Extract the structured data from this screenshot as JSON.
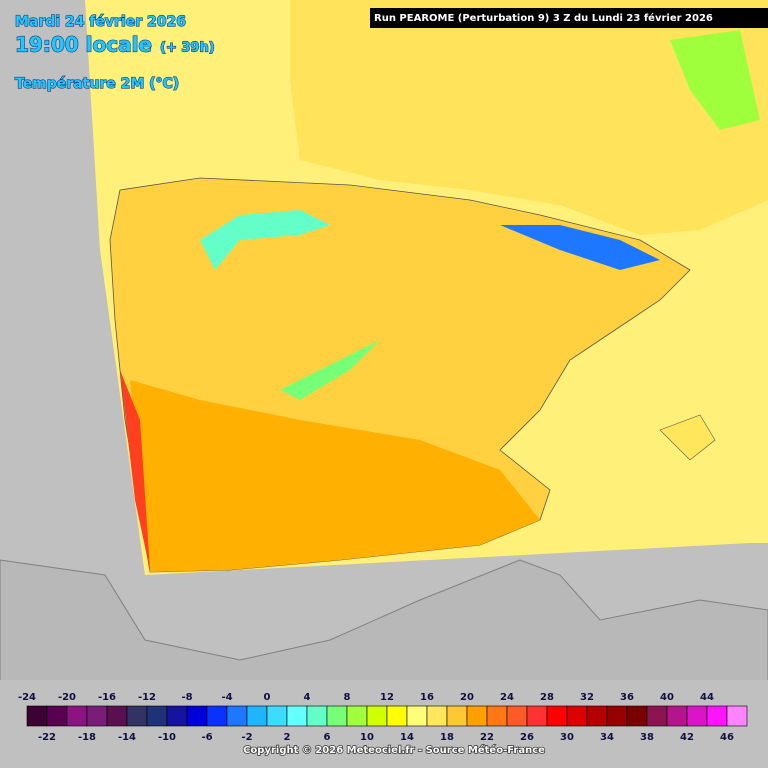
{
  "header": {
    "date": "Mardi 24 février 2026",
    "time": "19:00 locale",
    "lead": "(+ 39h)",
    "parameter": "Température 2M (°C)",
    "run": "Run PEAROME (Perturbation 9) 3 Z du Lundi 23 février 2026"
  },
  "legend": {
    "values": [
      -24,
      -22,
      -20,
      -18,
      -16,
      -14,
      -12,
      -10,
      -8,
      -6,
      -4,
      -2,
      0,
      2,
      4,
      6,
      8,
      10,
      12,
      14,
      16,
      18,
      20,
      22,
      24,
      26,
      28,
      30,
      32,
      34,
      36,
      38,
      40,
      42,
      44,
      46
    ],
    "colors": [
      "#3c0032",
      "#5a0050",
      "#8c1482",
      "#781e78",
      "#5a0f50",
      "#323264",
      "#1e3278",
      "#1414a0",
      "#0000dc",
      "#0a32ff",
      "#1e78ff",
      "#1eb4ff",
      "#3cdcff",
      "#64ffff",
      "#64ffc8",
      "#78ff78",
      "#a0ff3c",
      "#d2ff00",
      "#ffff00",
      "#ffff78",
      "#ffe65a",
      "#ffc832",
      "#ffa000",
      "#ff7814",
      "#ff5a28",
      "#ff3232",
      "#ff0000",
      "#dc0000",
      "#b40000",
      "#960000",
      "#780000",
      "#8c1450",
      "#b4148c",
      "#dc14c8",
      "#ff14ff",
      "#ff82ff"
    ]
  },
  "footer": {
    "copyright": "Copyright © 2026 Meteociel.fr - Source Météo-France"
  }
}
